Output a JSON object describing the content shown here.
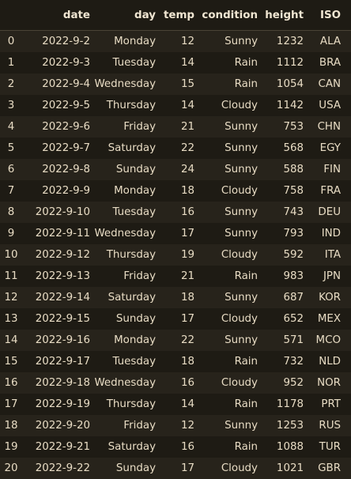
{
  "table": {
    "columns": [
      "",
      "date",
      "day",
      "temp",
      "condition",
      "height",
      "ISO"
    ],
    "rows": [
      [
        "0",
        "2022-9-2",
        "Monday",
        "12",
        "Sunny",
        "1232",
        "ALA"
      ],
      [
        "1",
        "2022-9-3",
        "Tuesday",
        "14",
        "Rain",
        "1112",
        "BRA"
      ],
      [
        "2",
        "2022-9-4",
        "Wednesday",
        "15",
        "Rain",
        "1054",
        "CAN"
      ],
      [
        "3",
        "2022-9-5",
        "Thursday",
        "14",
        "Cloudy",
        "1142",
        "USA"
      ],
      [
        "4",
        "2022-9-6",
        "Friday",
        "21",
        "Sunny",
        "753",
        "CHN"
      ],
      [
        "5",
        "2022-9-7",
        "Saturday",
        "22",
        "Sunny",
        "568",
        "EGY"
      ],
      [
        "6",
        "2022-9-8",
        "Sunday",
        "24",
        "Sunny",
        "588",
        "FIN"
      ],
      [
        "7",
        "2022-9-9",
        "Monday",
        "18",
        "Cloudy",
        "758",
        "FRA"
      ],
      [
        "8",
        "2022-9-10",
        "Tuesday",
        "16",
        "Sunny",
        "743",
        "DEU"
      ],
      [
        "9",
        "2022-9-11",
        "Wednesday",
        "17",
        "Sunny",
        "793",
        "IND"
      ],
      [
        "10",
        "2022-9-12",
        "Thursday",
        "19",
        "Cloudy",
        "592",
        "ITA"
      ],
      [
        "11",
        "2022-9-13",
        "Friday",
        "21",
        "Rain",
        "983",
        "JPN"
      ],
      [
        "12",
        "2022-9-14",
        "Saturday",
        "18",
        "Sunny",
        "687",
        "KOR"
      ],
      [
        "13",
        "2022-9-15",
        "Sunday",
        "17",
        "Cloudy",
        "652",
        "MEX"
      ],
      [
        "14",
        "2022-9-16",
        "Monday",
        "22",
        "Sunny",
        "571",
        "MCO"
      ],
      [
        "15",
        "2022-9-17",
        "Tuesday",
        "18",
        "Rain",
        "732",
        "NLD"
      ],
      [
        "16",
        "2022-9-18",
        "Wednesday",
        "16",
        "Cloudy",
        "952",
        "NOR"
      ],
      [
        "17",
        "2022-9-19",
        "Thursday",
        "14",
        "Rain",
        "1178",
        "PRT"
      ],
      [
        "18",
        "2022-9-20",
        "Friday",
        "12",
        "Sunny",
        "1253",
        "RUS"
      ],
      [
        "19",
        "2022-9-21",
        "Saturday",
        "16",
        "Rain",
        "1088",
        "TUR"
      ],
      [
        "20",
        "2022-9-22",
        "Sunday",
        "17",
        "Cloudy",
        "1021",
        "GBR"
      ]
    ]
  },
  "colors": {
    "background": "#1e1b14",
    "row_alt": "#27231b",
    "text": "#e8dcc4"
  }
}
